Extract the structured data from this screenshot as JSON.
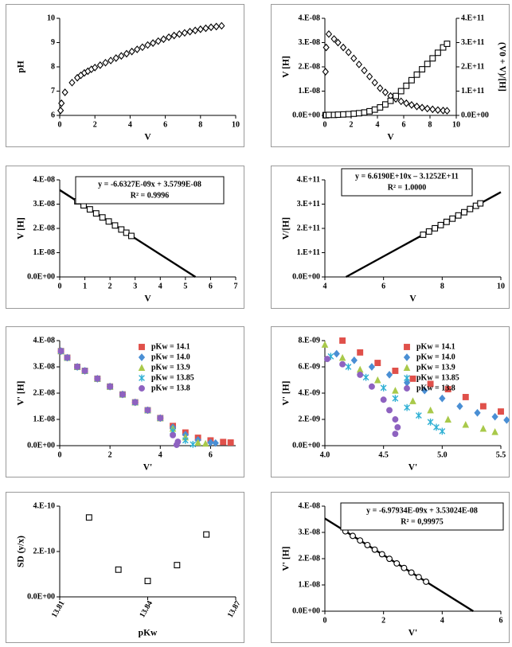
{
  "chart_data": [
    {
      "type": "scatter",
      "xlabel": "V",
      "ylabel": "pH",
      "xlim": [
        0,
        10
      ],
      "xticks": [
        0,
        2,
        4,
        6,
        8,
        10
      ],
      "ylim": [
        6,
        10
      ],
      "yticks": [
        6,
        7,
        8,
        9,
        10
      ],
      "series": [
        {
          "marker": "diamond",
          "color": "#000000",
          "x": [
            0.05,
            0.1,
            0.3,
            0.7,
            1.0,
            1.2,
            1.4,
            1.6,
            1.8,
            2.0,
            2.3,
            2.6,
            2.9,
            3.2,
            3.5,
            3.8,
            4.1,
            4.4,
            4.7,
            5.0,
            5.3,
            5.6,
            5.9,
            6.2,
            6.5,
            6.8,
            7.1,
            7.4,
            7.7,
            8.0,
            8.3,
            8.6,
            8.9,
            9.2
          ],
          "values": [
            6.2,
            6.5,
            6.95,
            7.35,
            7.55,
            7.65,
            7.75,
            7.82,
            7.9,
            7.97,
            8.07,
            8.17,
            8.26,
            8.36,
            8.45,
            8.54,
            8.63,
            8.72,
            8.81,
            8.9,
            8.98,
            9.06,
            9.14,
            9.22,
            9.29,
            9.35,
            9.4,
            9.45,
            9.5,
            9.55,
            9.59,
            9.63,
            9.66,
            9.69
          ]
        }
      ]
    },
    {
      "type": "scatter",
      "xlabel": "V",
      "ylabel": "V [H]",
      "y2label": "(V0 + V)/[H]",
      "xlim": [
        0,
        10
      ],
      "xticks": [
        0,
        2,
        4,
        6,
        8,
        10
      ],
      "ylim": [
        0,
        4e-08
      ],
      "yticks": [
        {
          "value": 0,
          "label": "0.0E+00"
        },
        {
          "value": 1e-08,
          "label": "1.E-08"
        },
        {
          "value": 2e-08,
          "label": "2.E-08"
        },
        {
          "value": 3e-08,
          "label": "3.E-08"
        },
        {
          "value": 4e-08,
          "label": "4.E-08"
        }
      ],
      "y2lim": [
        0,
        400000000000.0
      ],
      "y2ticks": [
        {
          "value": 0,
          "label": "0.0E+00"
        },
        {
          "value": 100000000000.0,
          "label": "1.E+11"
        },
        {
          "value": 200000000000.0,
          "label": "2.E+11"
        },
        {
          "value": 300000000000.0,
          "label": "3.E+11"
        },
        {
          "value": 400000000000.0,
          "label": "4.E+11"
        }
      ],
      "series": [
        {
          "marker": "diamond",
          "color": "#000000",
          "x": [
            0.05,
            0.1,
            0.3,
            0.7,
            1.0,
            1.4,
            1.8,
            2.2,
            2.6,
            3.0,
            3.4,
            3.8,
            4.2,
            4.6,
            5.0,
            5.4,
            5.8,
            6.2,
            6.6,
            7.0,
            7.4,
            7.8,
            8.2,
            8.6,
            9.0,
            9.3
          ],
          "values": [
            1.8e-08,
            2.8e-08,
            3.35e-08,
            3.15e-08,
            3e-08,
            2.8e-08,
            2.6e-08,
            2.35e-08,
            2.1e-08,
            1.85e-08,
            1.6e-08,
            1.35e-08,
            1.12e-08,
            9.5e-09,
            8e-09,
            6.8e-09,
            5.8e-09,
            5e-09,
            4.3e-09,
            3.7e-09,
            3.2e-09,
            2.8e-09,
            2.5e-09,
            2.2e-09,
            2e-09,
            1.9e-09
          ]
        },
        {
          "marker": "square",
          "color": "#000000",
          "axis": "y2",
          "x": [
            0.05,
            0.1,
            0.3,
            0.7,
            1.0,
            1.4,
            1.8,
            2.2,
            2.6,
            3.0,
            3.4,
            3.8,
            4.2,
            4.6,
            5.0,
            5.4,
            5.8,
            6.2,
            6.6,
            7.0,
            7.4,
            7.8,
            8.2,
            8.6,
            9.0,
            9.3
          ],
          "values": [
            1000000000.0,
            1000000000.0,
            2000000000.0,
            2000000000.0,
            3000000000.0,
            4000000000.0,
            5000000000.0,
            7000000000.0,
            9000000000.0,
            12000000000.0,
            17000000000.0,
            24000000000.0,
            33000000000.0,
            45000000000.0,
            60000000000.0,
            80000000000.0,
            100000000000.0,
            122000000000.0,
            145000000000.0,
            168000000000.0,
            190000000000.0,
            212000000000.0,
            235000000000.0,
            258000000000.0,
            280000000000.0,
            295000000000.0
          ]
        }
      ]
    },
    {
      "type": "scatter",
      "xlabel": "V",
      "ylabel": "V [H]",
      "xlim": [
        0,
        7
      ],
      "xticks": [
        0,
        1,
        2,
        3,
        4,
        5,
        6,
        7
      ],
      "ylim": [
        0,
        4e-08
      ],
      "yticks": [
        {
          "value": 0,
          "label": "0.0E+00"
        },
        {
          "value": 1e-08,
          "label": "1.E-08"
        },
        {
          "value": 2e-08,
          "label": "2.E-08"
        },
        {
          "value": 3e-08,
          "label": "3.E-08"
        },
        {
          "value": 4e-08,
          "label": "4.E-08"
        }
      ],
      "annotation": [
        "y = -6.6327E-09x + 3.5799E-08",
        "R² = 0.9996"
      ],
      "trendline": {
        "x": [
          0,
          5.4
        ],
        "values": [
          3.5799e-08,
          0
        ]
      },
      "series": [
        {
          "marker": "square",
          "color": "#000000",
          "x": [
            0.7,
            0.95,
            1.2,
            1.45,
            1.7,
            1.95,
            2.2,
            2.45,
            2.65,
            2.85
          ],
          "values": [
            3.1156e-08,
            2.9498e-08,
            2.784e-08,
            2.6182e-08,
            2.4523e-08,
            2.2865e-08,
            2.1207e-08,
            1.9549e-08,
            1.8222e-08,
            1.6896e-08
          ]
        }
      ]
    },
    {
      "type": "scatter",
      "xlabel": "V",
      "ylabel": "V/[H]",
      "xlim": [
        4,
        10
      ],
      "xticks": [
        4,
        6,
        8,
        10
      ],
      "ylim": [
        0,
        400000000000.0
      ],
      "yticks": [
        {
          "value": 0,
          "label": "0.0E+00"
        },
        {
          "value": 100000000000.0,
          "label": "1.E+11"
        },
        {
          "value": 200000000000.0,
          "label": "2.E+11"
        },
        {
          "value": 300000000000.0,
          "label": "3.E+11"
        },
        {
          "value": 400000000000.0,
          "label": "4.E+11"
        }
      ],
      "annotation": [
        "y = 6.6190E+10x – 3.1252E+11",
        "R² = 1.0000"
      ],
      "trendline": {
        "x": [
          4.72,
          10
        ],
        "values": [
          0,
          349380000000.0
        ]
      },
      "series": [
        {
          "marker": "square",
          "color": "#000000",
          "x": [
            7.35,
            7.55,
            7.75,
            7.95,
            8.15,
            8.35,
            8.55,
            8.75,
            8.95,
            9.15,
            9.3
          ],
          "values": [
            174000000000.0,
            187200000000.0,
            200500000000.0,
            213700000000.0,
            226900000000.0,
            240200000000.0,
            253400000000.0,
            266600000000.0,
            279900000000.0,
            293100000000.0,
            303000000000.0
          ]
        }
      ]
    },
    {
      "type": "scatter",
      "xlabel": "V'",
      "ylabel": "V' [H]",
      "xlim": [
        0,
        7
      ],
      "xticks": [
        0,
        2,
        4,
        6
      ],
      "ylim": [
        0,
        4e-08
      ],
      "yticks": [
        {
          "value": 0,
          "label": "0.0E+00"
        },
        {
          "value": 1e-08,
          "label": "1.E-08"
        },
        {
          "value": 2e-08,
          "label": "2.E-08"
        },
        {
          "value": 3e-08,
          "label": "3.E-08"
        },
        {
          "value": 4e-08,
          "label": "4.E-08"
        }
      ],
      "legend": "upper right",
      "series": [
        {
          "name": "pKw = 14.1",
          "marker": "square",
          "color": "#e0504a",
          "filled": true,
          "x": [
            0.05,
            0.3,
            0.7,
            1.0,
            1.5,
            2.0,
            2.5,
            3.0,
            3.5,
            4.0,
            4.5,
            5.0,
            5.5,
            6.0,
            6.5,
            6.8
          ],
          "values": [
            3.6e-08,
            3.35e-08,
            3e-08,
            2.85e-08,
            2.55e-08,
            2.25e-08,
            1.95e-08,
            1.65e-08,
            1.35e-08,
            1.05e-08,
            7.5e-09,
            5e-09,
            3e-09,
            2e-09,
            1.4e-09,
            1.2e-09
          ]
        },
        {
          "name": "pKw = 14.0",
          "marker": "diamond",
          "color": "#4a8fd4",
          "filled": true,
          "x": [
            0.05,
            0.3,
            0.7,
            1.0,
            1.5,
            2.0,
            2.5,
            3.0,
            3.5,
            4.0,
            4.5,
            5.0,
            5.5,
            6.0,
            6.2
          ],
          "values": [
            3.6e-08,
            3.35e-08,
            3e-08,
            2.85e-08,
            2.55e-08,
            2.25e-08,
            1.95e-08,
            1.65e-08,
            1.35e-08,
            1.05e-08,
            7e-09,
            4.2e-09,
            2.2e-09,
            1.2e-09,
            1e-09
          ]
        },
        {
          "name": "pKw = 13.9",
          "marker": "triangle",
          "color": "#a9c94a",
          "filled": true,
          "x": [
            0.05,
            0.3,
            0.7,
            1.0,
            1.5,
            2.0,
            2.5,
            3.0,
            3.5,
            4.0,
            4.5,
            5.0,
            5.5,
            5.8
          ],
          "values": [
            3.6e-08,
            3.35e-08,
            3e-08,
            2.85e-08,
            2.55e-08,
            2.25e-08,
            1.95e-08,
            1.65e-08,
            1.35e-08,
            1.05e-08,
            6.5e-09,
            3.2e-09,
            1.2e-09,
            8e-10
          ]
        },
        {
          "name": "pKw = 13.85",
          "marker": "x",
          "color": "#2fb0d4",
          "filled": true,
          "x": [
            0.05,
            0.3,
            0.7,
            1.0,
            1.5,
            2.0,
            2.5,
            3.0,
            3.5,
            4.0,
            4.5,
            5.0,
            5.3
          ],
          "values": [
            3.6e-08,
            3.35e-08,
            3e-08,
            2.85e-08,
            2.55e-08,
            2.25e-08,
            1.95e-08,
            1.65e-08,
            1.35e-08,
            1.05e-08,
            5.5e-09,
            2e-09,
            5e-10
          ]
        },
        {
          "name": "pKw = 13.8",
          "marker": "circle",
          "color": "#8e62c0",
          "filled": true,
          "x": [
            0.05,
            0.3,
            0.7,
            1.0,
            1.5,
            2.0,
            2.5,
            3.0,
            3.5,
            4.0,
            4.5,
            4.7,
            4.65
          ],
          "values": [
            3.6e-08,
            3.35e-08,
            3e-08,
            2.85e-08,
            2.55e-08,
            2.25e-08,
            1.95e-08,
            1.65e-08,
            1.35e-08,
            1.05e-08,
            4e-09,
            1.5e-09,
            3e-10
          ]
        }
      ]
    },
    {
      "type": "scatter",
      "xlabel": "V'",
      "ylabel": "V' [H]",
      "xlim": [
        4,
        5.5
      ],
      "xticks": [
        {
          "value": 4,
          "label": "4.0"
        },
        4.5,
        {
          "value": 5,
          "label": "5.0"
        },
        5.5
      ],
      "ylim": [
        0,
        8e-09
      ],
      "yticks": [
        {
          "value": 0,
          "label": "0.0E+00"
        },
        {
          "value": 2e-09,
          "label": "2.E-09"
        },
        {
          "value": 4e-09,
          "label": "4.E-09"
        },
        {
          "value": 6e-09,
          "label": "6.E-09"
        },
        {
          "value": 8e-09,
          "label": "8.E-09"
        }
      ],
      "legend": "upper right",
      "series": [
        {
          "name": "pKw = 14.1",
          "marker": "square",
          "color": "#e0504a",
          "filled": true,
          "x": [
            4.15,
            4.3,
            4.45,
            4.6,
            4.75,
            4.9,
            5.05,
            5.2,
            5.35,
            5.5
          ],
          "values": [
            8e-09,
            7.1e-09,
            6.3e-09,
            5.7e-09,
            5.1e-09,
            4.7e-09,
            4.3e-09,
            3.7e-09,
            3e-09,
            2.6e-09
          ]
        },
        {
          "name": "pKw = 14.0",
          "marker": "diamond",
          "color": "#4a8fd4",
          "filled": true,
          "x": [
            4.1,
            4.25,
            4.4,
            4.55,
            4.7,
            4.85,
            5.0,
            5.15,
            5.3,
            5.45,
            5.55
          ],
          "values": [
            7e-09,
            6.5e-09,
            6e-09,
            5.4e-09,
            4.8e-09,
            4.2e-09,
            3.6e-09,
            3e-09,
            2.5e-09,
            2.2e-09,
            1.95e-09
          ]
        },
        {
          "name": "pKw = 13.9",
          "marker": "triangle",
          "color": "#a9c94a",
          "filled": true,
          "x": [
            4.0,
            4.15,
            4.3,
            4.45,
            4.6,
            4.75,
            4.9,
            5.05,
            5.2,
            5.35,
            5.45
          ],
          "values": [
            7.7e-09,
            6.7e-09,
            5.8e-09,
            5e-09,
            4.2e-09,
            3.4e-09,
            2.7e-09,
            2e-09,
            1.6e-09,
            1.3e-09,
            1.05e-09
          ]
        },
        {
          "name": "pKw = 13.85",
          "marker": "x",
          "color": "#2fb0d4",
          "filled": true,
          "x": [
            4.05,
            4.2,
            4.35,
            4.5,
            4.6,
            4.7,
            4.8,
            4.9,
            4.95,
            5.0
          ],
          "values": [
            6.8e-09,
            6e-09,
            5.2e-09,
            4.4e-09,
            3.6e-09,
            2.9e-09,
            2.3e-09,
            1.8e-09,
            1.4e-09,
            1.1e-09
          ]
        },
        {
          "name": "pKw = 13.8",
          "marker": "circle",
          "color": "#8e62c0",
          "filled": true,
          "x": [
            4.02,
            4.15,
            4.3,
            4.4,
            4.5,
            4.55,
            4.6,
            4.62,
            4.6
          ],
          "values": [
            6.6e-09,
            6.2e-09,
            5.4e-09,
            4.5e-09,
            3.5e-09,
            2.7e-09,
            2e-09,
            1.4e-09,
            9e-10
          ]
        }
      ]
    },
    {
      "type": "scatter",
      "xlabel": "pKw",
      "ylabel": "SD (y/x)",
      "xlim": [
        13.81,
        13.87
      ],
      "xticks": [
        13.81,
        13.84,
        13.87
      ],
      "ylim": [
        0,
        4e-10
      ],
      "yticks": [
        {
          "value": 0,
          "label": "0.0E+00"
        },
        {
          "value": 2e-10,
          "label": "2.E-10"
        },
        {
          "value": 4e-10,
          "label": "4.E-10"
        }
      ],
      "series": [
        {
          "marker": "square",
          "color": "#000000",
          "x": [
            13.82,
            13.83,
            13.84,
            13.85,
            13.86
          ],
          "values": [
            3.5e-10,
            1.2e-10,
            7e-11,
            1.4e-10,
            2.75e-10
          ]
        }
      ]
    },
    {
      "type": "scatter",
      "xlabel": "V'",
      "ylabel": "V' [H]",
      "xlim": [
        0,
        6
      ],
      "xticks": [
        0,
        2,
        4,
        6
      ],
      "ylim": [
        0,
        4e-08
      ],
      "yticks": [
        {
          "value": 0,
          "label": "0.0E+00"
        },
        {
          "value": 1e-08,
          "label": "1.E-08"
        },
        {
          "value": 2e-08,
          "label": "2.E-08"
        },
        {
          "value": 3e-08,
          "label": "3.E-08"
        },
        {
          "value": 4e-08,
          "label": "4.E-08"
        }
      ],
      "annotation": [
        "y = -6.97934E-09x + 3.53024E-08",
        "R² = 0,99975"
      ],
      "trendline": {
        "x": [
          0,
          5.06
        ],
        "values": [
          3.53024e-08,
          0
        ]
      },
      "series": [
        {
          "marker": "circle",
          "color": "#000000",
          "x": [
            0.7,
            0.95,
            1.2,
            1.45,
            1.7,
            1.95,
            2.2,
            2.45,
            2.7,
            2.95,
            3.2,
            3.45
          ],
          "values": [
            3.0417e-08,
            2.8672e-08,
            2.6927e-08,
            2.5183e-08,
            2.3438e-08,
            2.1693e-08,
            1.9948e-08,
            1.8204e-08,
            1.6459e-08,
            1.4714e-08,
            1.2969e-08,
            1.1224e-08
          ]
        }
      ]
    }
  ]
}
